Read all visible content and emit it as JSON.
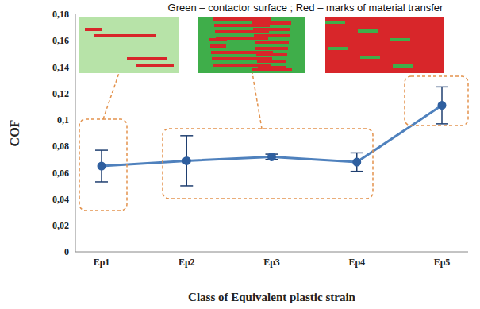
{
  "chart_data": {
    "type": "line",
    "title": "Green – contactor surface ; Red – marks of material transfer",
    "x_label": "Class of Equivalent plastic strain",
    "y_label": "COF",
    "categories": [
      "Ep1",
      "Ep2",
      "Ep3",
      "Ep4",
      "Ep5"
    ],
    "values": [
      0.065,
      0.069,
      0.072,
      0.068,
      0.111
    ],
    "errors": [
      0.012,
      0.019,
      0.002,
      0.007,
      0.014
    ],
    "color": "#4f81bd",
    "marker": "circle",
    "ylim": [
      0,
      0.18
    ],
    "yticks": [
      0,
      {
        "value": 0.02,
        "label": "0,02"
      },
      {
        "value": 0.04,
        "label": "0,04"
      },
      {
        "value": 0.06,
        "label": "0,06"
      },
      {
        "value": 0.08,
        "label": "0,08"
      },
      {
        "value": 0.1,
        "label": "0,1"
      },
      {
        "value": 0.12,
        "label": "0,12"
      },
      {
        "value": 0.14,
        "label": "0,14"
      },
      {
        "value": 0.16,
        "label": "0,16"
      },
      {
        "value": 0.18,
        "label": "0,18"
      }
    ],
    "grid": false
  }
}
